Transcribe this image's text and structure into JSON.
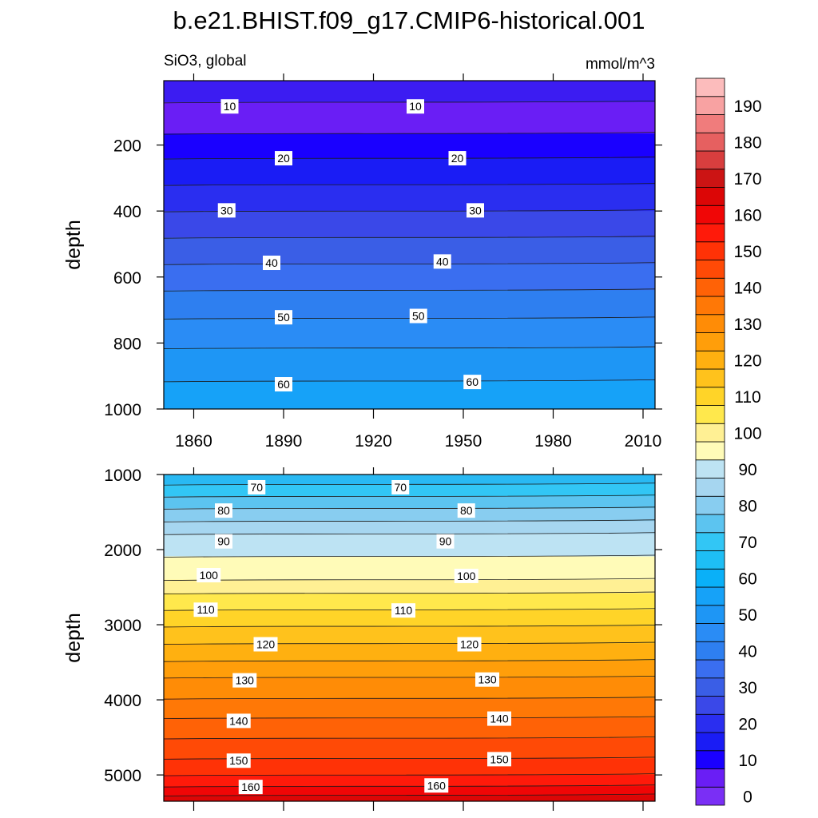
{
  "title": "b.e21.BHIST.f09_g17.CMIP6-historical.001",
  "subtitle_left": "SiO3, global",
  "subtitle_right": "mmol/m^3",
  "colorbar": {
    "levels": [
      0,
      5,
      10,
      15,
      20,
      25,
      30,
      35,
      40,
      45,
      50,
      55,
      60,
      65,
      70,
      75,
      80,
      85,
      90,
      95,
      100,
      105,
      110,
      115,
      120,
      125,
      130,
      135,
      140,
      145,
      150,
      155,
      160,
      165,
      170,
      175,
      180,
      185,
      190,
      195
    ],
    "colors": [
      "#7a2ff5",
      "#6a1ef5",
      "#1a00ff",
      "#1a1cf5",
      "#2a2ef0",
      "#3a48e8",
      "#3a5ee6",
      "#3a6ef0",
      "#2e7ff0",
      "#2a8cf5",
      "#1e96f5",
      "#16a2f8",
      "#0ab0f8",
      "#1ebef5",
      "#32c6f5",
      "#5cc4f0",
      "#88cdf0",
      "#a6d6f0",
      "#bde3f3",
      "#fffbb8",
      "#fff094",
      "#ffe84c",
      "#ffd428",
      "#ffc21c",
      "#ffb010",
      "#ff9e0a",
      "#ff8c06",
      "#ff7806",
      "#ff6206",
      "#ff4a06",
      "#ff3206",
      "#ff1a0a",
      "#f00606",
      "#dc0606",
      "#cc1414",
      "#d83e3e",
      "#e66060",
      "#f07c7c",
      "#f8a2a2",
      "#fcbcbc"
    ],
    "tick_labels": [
      "0",
      "10",
      "20",
      "30",
      "40",
      "50",
      "60",
      "70",
      "80",
      "90",
      "100",
      "110",
      "120",
      "130",
      "140",
      "150",
      "160",
      "170",
      "180",
      "190"
    ]
  },
  "chart_data": [
    {
      "type": "heatmap",
      "title": "SiO3, global",
      "units": "mmol/m^3",
      "xlabel": "",
      "ylabel": "depth",
      "xlim": [
        1850,
        2014
      ],
      "ylim": [
        1000,
        5
      ],
      "x_tick_labels": [
        "1860",
        "1890",
        "1920",
        "1950",
        "1980",
        "2010"
      ],
      "y_tick_labels": [
        "200",
        "400",
        "600",
        "800",
        "1000"
      ],
      "y_ticks": [
        200,
        400,
        600,
        800,
        1000
      ],
      "contour_levels": [
        5,
        10,
        15,
        20,
        25,
        30,
        35,
        40,
        45,
        50,
        55,
        60
      ],
      "contour_depths": [
        70,
        165,
        240,
        320,
        400,
        480,
        560,
        640,
        725,
        815,
        915,
        1000
      ],
      "contour_labels": [
        {
          "value": "10",
          "x": 1872,
          "depth": 83
        },
        {
          "value": "10",
          "x": 1934,
          "depth": 83
        },
        {
          "value": "20",
          "x": 1890,
          "depth": 240
        },
        {
          "value": "20",
          "x": 1948,
          "depth": 240
        },
        {
          "value": "30",
          "x": 1871,
          "depth": 398
        },
        {
          "value": "30",
          "x": 1954,
          "depth": 398
        },
        {
          "value": "40",
          "x": 1886,
          "depth": 557
        },
        {
          "value": "40",
          "x": 1943,
          "depth": 553
        },
        {
          "value": "50",
          "x": 1890,
          "depth": 722
        },
        {
          "value": "50",
          "x": 1935,
          "depth": 718
        },
        {
          "value": "60",
          "x": 1890,
          "depth": 925
        },
        {
          "value": "60",
          "x": 1953,
          "depth": 918
        }
      ]
    },
    {
      "type": "heatmap",
      "xlabel": "",
      "ylabel": "depth",
      "xlim": [
        1850,
        2014
      ],
      "ylim": [
        5350,
        1000
      ],
      "y_tick_labels": [
        "1000",
        "2000",
        "3000",
        "4000",
        "5000"
      ],
      "y_ticks": [
        1000,
        2000,
        3000,
        4000,
        5000
      ],
      "contour_levels": [
        70,
        75,
        80,
        85,
        90,
        95,
        100,
        105,
        110,
        115,
        120,
        125,
        130,
        135,
        140,
        145,
        150,
        155,
        160,
        165
      ],
      "contour_depths": [
        1130,
        1290,
        1450,
        1620,
        1790,
        2090,
        2400,
        2580,
        2800,
        3020,
        3250,
        3480,
        3700,
        3980,
        4240,
        4510,
        4780,
        5000,
        5150,
        5270
      ],
      "contour_labels": [
        {
          "value": "70",
          "x": 1881,
          "depth": 1170
        },
        {
          "value": "70",
          "x": 1929,
          "depth": 1170
        },
        {
          "value": "80",
          "x": 1870,
          "depth": 1480
        },
        {
          "value": "80",
          "x": 1951,
          "depth": 1480
        },
        {
          "value": "90",
          "x": 1870,
          "depth": 1890
        },
        {
          "value": "90",
          "x": 1944,
          "depth": 1890
        },
        {
          "value": "100",
          "x": 1865,
          "depth": 2340
        },
        {
          "value": "100",
          "x": 1951,
          "depth": 2350
        },
        {
          "value": "110",
          "x": 1864,
          "depth": 2800
        },
        {
          "value": "110",
          "x": 1930,
          "depth": 2810
        },
        {
          "value": "120",
          "x": 1884,
          "depth": 3260
        },
        {
          "value": "120",
          "x": 1952,
          "depth": 3260
        },
        {
          "value": "130",
          "x": 1877,
          "depth": 3740
        },
        {
          "value": "130",
          "x": 1958,
          "depth": 3730
        },
        {
          "value": "140",
          "x": 1875,
          "depth": 4280
        },
        {
          "value": "140",
          "x": 1962,
          "depth": 4250
        },
        {
          "value": "150",
          "x": 1875,
          "depth": 4810
        },
        {
          "value": "150",
          "x": 1962,
          "depth": 4790
        },
        {
          "value": "160",
          "x": 1879,
          "depth": 5160
        },
        {
          "value": "160",
          "x": 1941,
          "depth": 5140
        }
      ]
    }
  ]
}
